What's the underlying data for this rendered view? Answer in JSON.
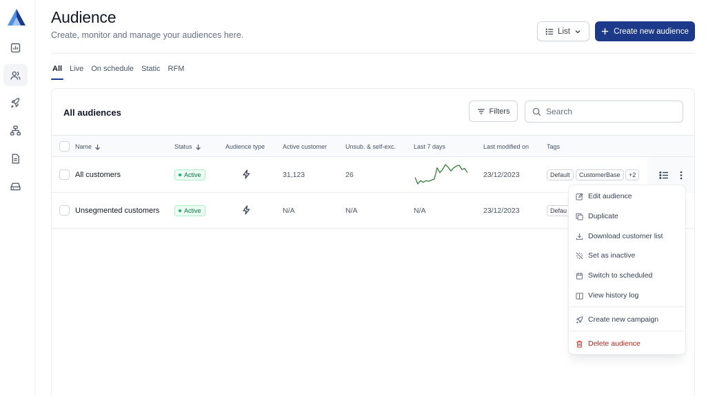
{
  "header": {
    "title": "Audience",
    "subtitle": "Create, monitor and manage your audiences here.",
    "view_select": "List",
    "create_button": "Create new audience"
  },
  "sidebar": {
    "items": [
      {
        "icon": "chart-icon"
      },
      {
        "icon": "users-icon",
        "active": true
      },
      {
        "icon": "rocket-icon"
      },
      {
        "icon": "sitemap-icon"
      },
      {
        "icon": "document-icon"
      },
      {
        "icon": "inbox-icon"
      }
    ]
  },
  "tabs": [
    "All",
    "Live",
    "On schedule",
    "Static",
    "RFM"
  ],
  "card": {
    "title": "All audiences",
    "filters_label": "Filters",
    "search_placeholder": "Search"
  },
  "table": {
    "columns": [
      "Name",
      "Status",
      "Audience type",
      "Active customer",
      "Unsub. & self-exc.",
      "Last 7 days",
      "Last modified on",
      "Tags"
    ],
    "rows": [
      {
        "name": "All customers",
        "status": "Active",
        "type_icon": "lightning-icon",
        "active_customer": "31,123",
        "unsub": "26",
        "last7": "sparkline",
        "modified": "23/12/2023",
        "tags": [
          "Default",
          "CustomerBase",
          "+2"
        ]
      },
      {
        "name": "Unsegmented customers",
        "status": "Active",
        "type_icon": "lightning-icon",
        "active_customer": "N/A",
        "unsub": "N/A",
        "last7": "N/A",
        "modified": "23/12/2023",
        "tags": [
          "Defau"
        ]
      }
    ],
    "sparkline_values": [
      3,
      1,
      2,
      1.5,
      2,
      1.8,
      2.2,
      2.5,
      6,
      4.5,
      5.5,
      7,
      6.2,
      5,
      6,
      6.5,
      6.8,
      5.5,
      5.8,
      4.5
    ]
  },
  "menu": {
    "items": [
      {
        "label": "Edit audience",
        "icon": "edit-icon"
      },
      {
        "label": "Duplicate",
        "icon": "copy-icon"
      },
      {
        "label": "Download customer list",
        "icon": "download-icon"
      },
      {
        "label": "Set as inactive",
        "icon": "inactive-icon"
      },
      {
        "label": "Switch to scheduled",
        "icon": "calendar-icon"
      },
      {
        "label": "View history log",
        "icon": "book-icon"
      },
      {
        "label": "Create new campaign",
        "icon": "rocket-icon"
      },
      {
        "label": "Delete audience",
        "icon": "trash-icon"
      }
    ]
  },
  "colors": {
    "brand": "#1d3a8a",
    "active_green": "#067647",
    "sparkline": "#2e7d32",
    "danger": "#d92d20"
  }
}
